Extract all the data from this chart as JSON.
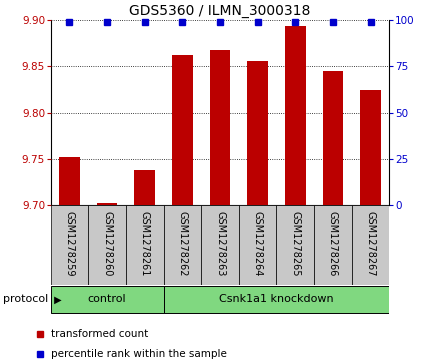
{
  "title": "GDS5360 / ILMN_3000318",
  "samples": [
    "GSM1278259",
    "GSM1278260",
    "GSM1278261",
    "GSM1278262",
    "GSM1278263",
    "GSM1278264",
    "GSM1278265",
    "GSM1278266",
    "GSM1278267"
  ],
  "red_values": [
    9.752,
    9.702,
    9.738,
    9.862,
    9.868,
    9.856,
    9.893,
    9.845,
    9.824
  ],
  "ylim_left": [
    9.7,
    9.9
  ],
  "ylim_right": [
    0,
    100
  ],
  "yticks_left": [
    9.7,
    9.75,
    9.8,
    9.85,
    9.9
  ],
  "yticks_right": [
    0,
    25,
    50,
    75,
    100
  ],
  "red_color": "#BB0000",
  "blue_color": "#0000CC",
  "bar_width": 0.55,
  "legend_red": "transformed count",
  "legend_blue": "percentile rank within the sample",
  "cell_bg": "#C8C8C8",
  "green_color": "#80D880",
  "ctrl_count": 3,
  "n_samples": 9,
  "title_fontsize": 10,
  "tick_fontsize": 7.5,
  "label_fontsize": 7,
  "proto_fontsize": 8
}
